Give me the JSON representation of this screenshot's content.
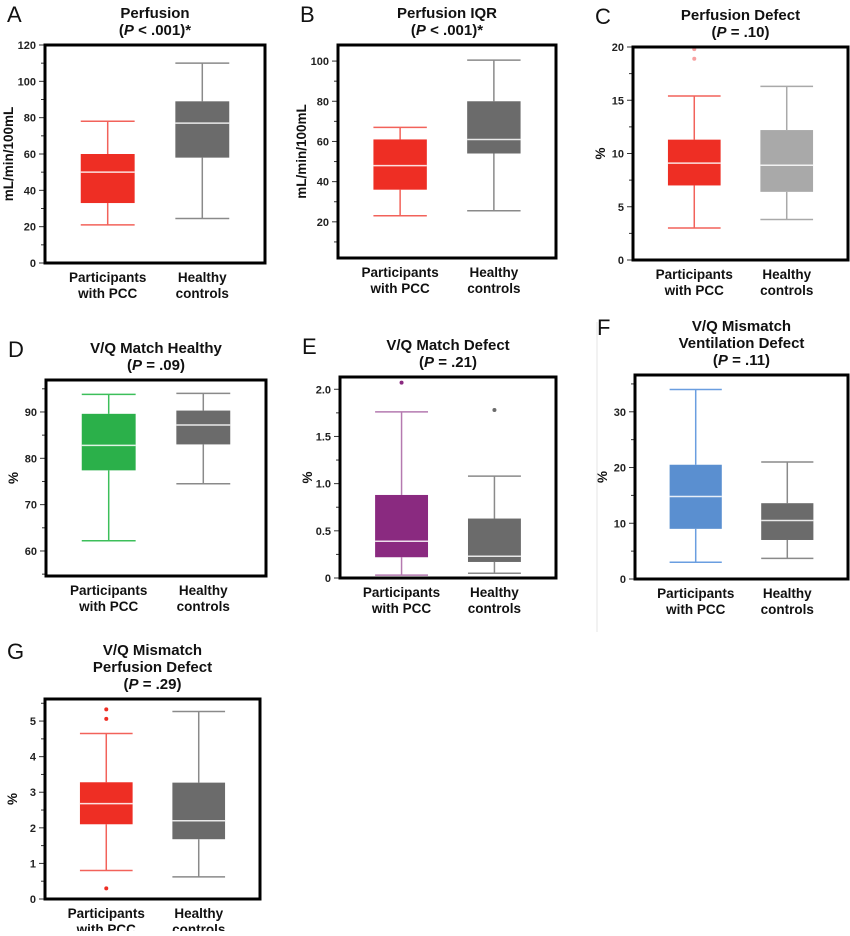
{
  "chart_data": [
    {
      "type": "box",
      "panel": "A",
      "title": [
        "Perfusion"
      ],
      "p_label": [
        "(",
        "P",
        " < .001)*"
      ],
      "ylabel": "mL/min/100mL",
      "ylim": [
        0,
        120
      ],
      "yticks": [
        0,
        20,
        40,
        60,
        80,
        100,
        120
      ],
      "tick_labels": [
        "0",
        "20",
        "40",
        "60",
        "80",
        "100",
        "120"
      ],
      "groups": [
        {
          "label": [
            "Participants",
            "with PCC"
          ],
          "fill": "#ee2e24",
          "line": "#f2625a",
          "min": 21,
          "q1": 33,
          "median": 50,
          "q3": 60,
          "max": 78,
          "outliers": []
        },
        {
          "label": [
            "Healthy",
            "controls"
          ],
          "fill": "#6b6b6b",
          "line": "#8a8a8a",
          "min": 24.5,
          "q1": 58,
          "median": 77,
          "q3": 89,
          "max": 110,
          "outliers": []
        }
      ]
    },
    {
      "type": "box",
      "panel": "B",
      "title": [
        "Perfusion IQR"
      ],
      "p_label": [
        "(",
        "P",
        " < .001)*"
      ],
      "ylabel": "mL/min/100mL",
      "ylim": [
        2,
        108
      ],
      "yticks": [
        20,
        40,
        60,
        80,
        100
      ],
      "tick_labels": [
        "20",
        "40",
        "60",
        "80",
        "100"
      ],
      "groups": [
        {
          "label": [
            "Participants",
            "with PCC"
          ],
          "fill": "#ee2e24",
          "line": "#f2625a",
          "min": 23,
          "q1": 36,
          "median": 48,
          "q3": 61,
          "max": 67,
          "outliers": []
        },
        {
          "label": [
            "Healthy",
            "controls"
          ],
          "fill": "#6b6b6b",
          "line": "#8a8a8a",
          "min": 25.5,
          "q1": 54,
          "median": 61,
          "q3": 80,
          "max": 100.5,
          "outliers": []
        }
      ]
    },
    {
      "type": "box",
      "panel": "C",
      "title": [
        "Perfusion Defect"
      ],
      "p_label": [
        "(",
        "P",
        " = .10)"
      ],
      "ylabel": "%",
      "ylim": [
        0,
        20
      ],
      "yticks": [
        0,
        5,
        10,
        15,
        20
      ],
      "tick_labels": [
        "0",
        "5",
        "10",
        "15",
        "20"
      ],
      "groups": [
        {
          "label": [
            "Participants",
            "with PCC"
          ],
          "fill": "#ee2e24",
          "line": "#f2625a",
          "outlier_color": "#f7a0a0",
          "min": 3,
          "q1": 7,
          "median": 9.1,
          "q3": 11.3,
          "max": 15.4,
          "outliers": [
            18.9,
            19.8
          ]
        },
        {
          "label": [
            "Healthy",
            "controls"
          ],
          "fill": "#a9a9a9",
          "line": "#a9a9a9",
          "min": 3.8,
          "q1": 6.4,
          "median": 8.9,
          "q3": 12.2,
          "max": 16.3,
          "outliers": []
        }
      ]
    },
    {
      "type": "box",
      "panel": "D",
      "title": [
        "V/Q Match Healthy"
      ],
      "p_label": [
        "(",
        "P",
        " = .09)"
      ],
      "ylabel": "%",
      "ylim": [
        54.6,
        96.9
      ],
      "yticks": [
        60,
        70,
        80,
        90
      ],
      "tick_labels": [
        "60",
        "70",
        "80",
        "90"
      ],
      "groups": [
        {
          "label": [
            "Participants",
            "with PCC"
          ],
          "fill": "#2bb04a",
          "line": "#3cbf5a",
          "min": 62.2,
          "q1": 77.4,
          "median": 82.8,
          "q3": 89.6,
          "max": 93.8,
          "outliers": []
        },
        {
          "label": [
            "Healthy",
            "controls"
          ],
          "fill": "#6b6b6b",
          "line": "#8a8a8a",
          "min": 74.5,
          "q1": 83,
          "median": 87.2,
          "q3": 90.3,
          "max": 94,
          "outliers": []
        }
      ]
    },
    {
      "type": "box",
      "panel": "E",
      "title": [
        "V/Q Match Defect"
      ],
      "p_label": [
        "(",
        "P",
        " = .21)"
      ],
      "ylabel": "%",
      "ylim": [
        0,
        2.13
      ],
      "yticks": [
        0,
        0.5,
        1,
        1.5,
        2
      ],
      "tick_labels": [
        "0",
        "0.5",
        "1.0",
        "1.5",
        "2.0"
      ],
      "groups": [
        {
          "label": [
            "Participants",
            "with PCC"
          ],
          "fill": "#8a2a80",
          "line": "#b57ab0",
          "outlier_color": "#8a2a80",
          "min": 0.03,
          "q1": 0.22,
          "median": 0.39,
          "q3": 0.88,
          "max": 1.76,
          "outliers": [
            2.07
          ]
        },
        {
          "label": [
            "Healthy",
            "controls"
          ],
          "fill": "#6b6b6b",
          "line": "#8a8a8a",
          "outlier_color": "#6b6b6b",
          "min": 0.05,
          "q1": 0.17,
          "median": 0.23,
          "q3": 0.63,
          "max": 1.08,
          "outliers": [
            1.78
          ]
        }
      ]
    },
    {
      "type": "box",
      "panel": "F",
      "title": [
        "V/Q Mismatch",
        "Ventilation Defect"
      ],
      "p_label": [
        "(",
        "P",
        " = .11)"
      ],
      "ylabel": "%",
      "ylim": [
        0,
        36.6
      ],
      "yticks": [
        0,
        10,
        20,
        30
      ],
      "tick_labels": [
        "0",
        "10",
        "20",
        "30"
      ],
      "groups": [
        {
          "label": [
            "Participants",
            "with PCC"
          ],
          "fill": "#5a8fd0",
          "line": "#6a9ee0",
          "min": 3,
          "q1": 9,
          "median": 14.8,
          "q3": 20.5,
          "max": 34,
          "outliers": []
        },
        {
          "label": [
            "Healthy",
            "controls"
          ],
          "fill": "#6b6b6b",
          "line": "#8a8a8a",
          "min": 3.7,
          "q1": 7,
          "median": 10.5,
          "q3": 13.6,
          "max": 21,
          "outliers": []
        }
      ]
    },
    {
      "type": "box",
      "panel": "G",
      "title": [
        "V/Q Mismatch",
        "Perfusion Defect"
      ],
      "p_label": [
        "(",
        "P",
        " = .29)"
      ],
      "ylabel": "%",
      "ylim": [
        0,
        5.62
      ],
      "yticks": [
        0,
        1,
        2,
        3,
        4,
        5
      ],
      "tick_labels": [
        "0",
        "1",
        "2",
        "3",
        "4",
        "5"
      ],
      "groups": [
        {
          "label": [
            "Participants",
            "with PCC"
          ],
          "fill": "#ee2e24",
          "line": "#f2625a",
          "outlier_color": "#ee2e24",
          "min": 0.8,
          "q1": 2.1,
          "median": 2.68,
          "q3": 3.28,
          "max": 4.65,
          "outliers": [
            5.06,
            5.33,
            0.3
          ]
        },
        {
          "label": [
            "Healthy",
            "controls"
          ],
          "fill": "#6b6b6b",
          "line": "#8a8a8a",
          "min": 0.62,
          "q1": 1.68,
          "median": 2.2,
          "q3": 3.27,
          "max": 5.27,
          "outliers": []
        }
      ]
    }
  ]
}
